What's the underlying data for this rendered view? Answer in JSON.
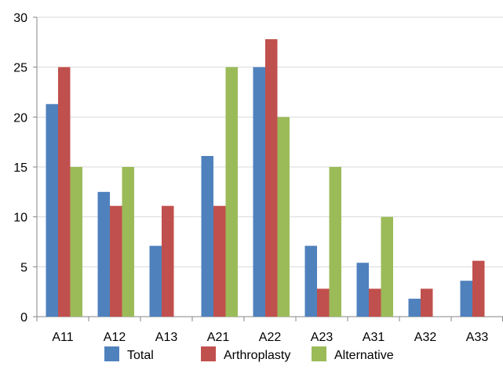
{
  "chart_data": {
    "type": "bar",
    "title": "",
    "xlabel": "",
    "ylabel": "",
    "categories": [
      "A11",
      "A12",
      "A13",
      "A21",
      "A22",
      "A23",
      "A31",
      "A32",
      "A33"
    ],
    "series": [
      {
        "name": "Total",
        "color": "#4F81BD",
        "values": [
          21.3,
          12.5,
          7.1,
          16.1,
          25.0,
          7.1,
          5.4,
          1.8,
          3.6
        ]
      },
      {
        "name": "Arthroplasty",
        "color": "#C0504D",
        "values": [
          25.0,
          11.1,
          11.1,
          11.1,
          27.8,
          2.8,
          2.8,
          2.8,
          5.6
        ]
      },
      {
        "name": "Alternative",
        "color": "#9BBB59",
        "values": [
          15.0,
          15.0,
          0,
          25.0,
          20.0,
          15.0,
          10.0,
          0,
          0
        ]
      }
    ],
    "ylim": [
      0,
      30
    ],
    "yticks": [
      0,
      5,
      10,
      15,
      20,
      25,
      30
    ],
    "grid": true,
    "legend_position": "bottom"
  }
}
